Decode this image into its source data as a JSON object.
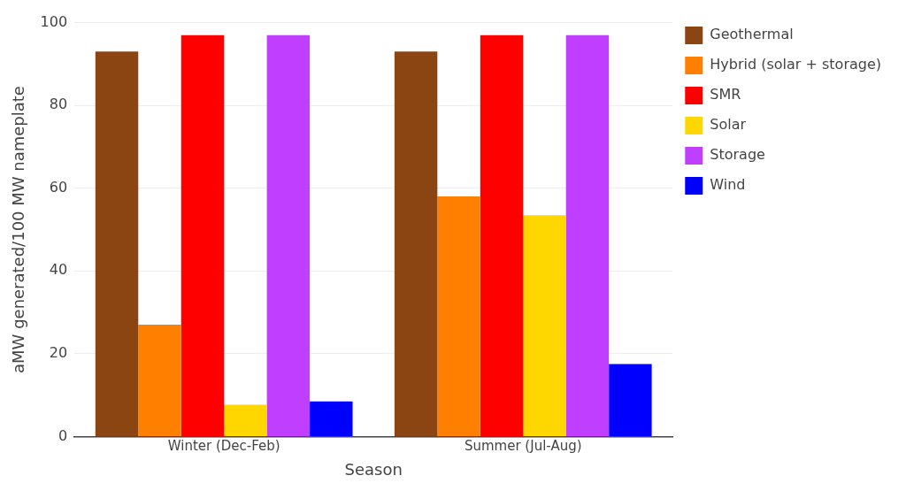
{
  "chart_data": {
    "type": "bar",
    "xlabel": "Season",
    "ylabel": "aMW generated/100 MW nameplate",
    "categories": [
      "Winter (Dec-Feb)",
      "Summer (Jul-Aug)"
    ],
    "series": [
      {
        "name": "Geothermal",
        "color": "#8b4513",
        "values": [
          93,
          93
        ]
      },
      {
        "name": "Hybrid (solar + storage)",
        "color": "#ff7f00",
        "values": [
          27,
          58
        ]
      },
      {
        "name": "SMR",
        "color": "#ff0000",
        "values": [
          97,
          97
        ]
      },
      {
        "name": "Solar",
        "color": "#ffd700",
        "values": [
          7.7,
          53.5
        ]
      },
      {
        "name": "Storage",
        "color": "#bf3eff",
        "values": [
          97,
          97
        ]
      },
      {
        "name": "Wind",
        "color": "#0000ff",
        "values": [
          8.5,
          17.5
        ]
      }
    ],
    "ylim": [
      0,
      100
    ],
    "yticks": [
      0,
      20,
      40,
      60,
      80,
      100
    ],
    "grid": "y",
    "legend": "top right"
  }
}
